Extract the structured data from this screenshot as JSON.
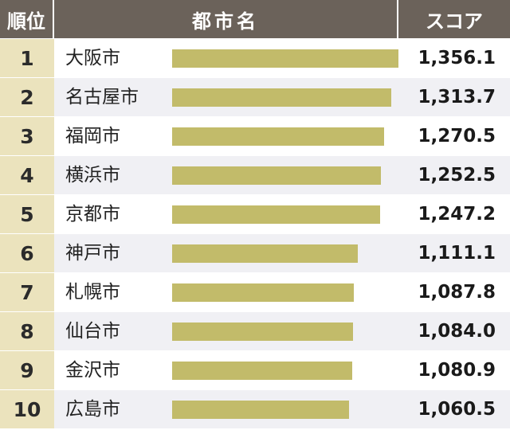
{
  "header": {
    "rank": "順位",
    "city": "都市名",
    "score": "スコア"
  },
  "colors": {
    "header_bg": "#6b625a",
    "rank_bg": "#ebe3bd",
    "bar": "#c2bb6a",
    "row_alt": "#f0f0f4"
  },
  "chart_data": {
    "type": "bar",
    "orientation": "horizontal",
    "categories": [
      "大阪市",
      "名古屋市",
      "福岡市",
      "横浜市",
      "京都市",
      "神戸市",
      "札幌市",
      "仙台市",
      "金沢市",
      "広島市"
    ],
    "ranks": [
      "1",
      "2",
      "3",
      "4",
      "5",
      "6",
      "7",
      "8",
      "9",
      "10"
    ],
    "values": [
      1356.1,
      1313.7,
      1270.5,
      1252.5,
      1247.2,
      1111.1,
      1087.8,
      1084.0,
      1080.9,
      1060.5
    ],
    "labels": [
      "1,356.1",
      "1,313.7",
      "1,270.5",
      "1,252.5",
      "1,247.2",
      "1,111.1",
      "1,087.8",
      "1,084.0",
      "1,080.9",
      "1,060.5"
    ],
    "xlim": [
      0,
      1356.1
    ],
    "grid": false
  }
}
